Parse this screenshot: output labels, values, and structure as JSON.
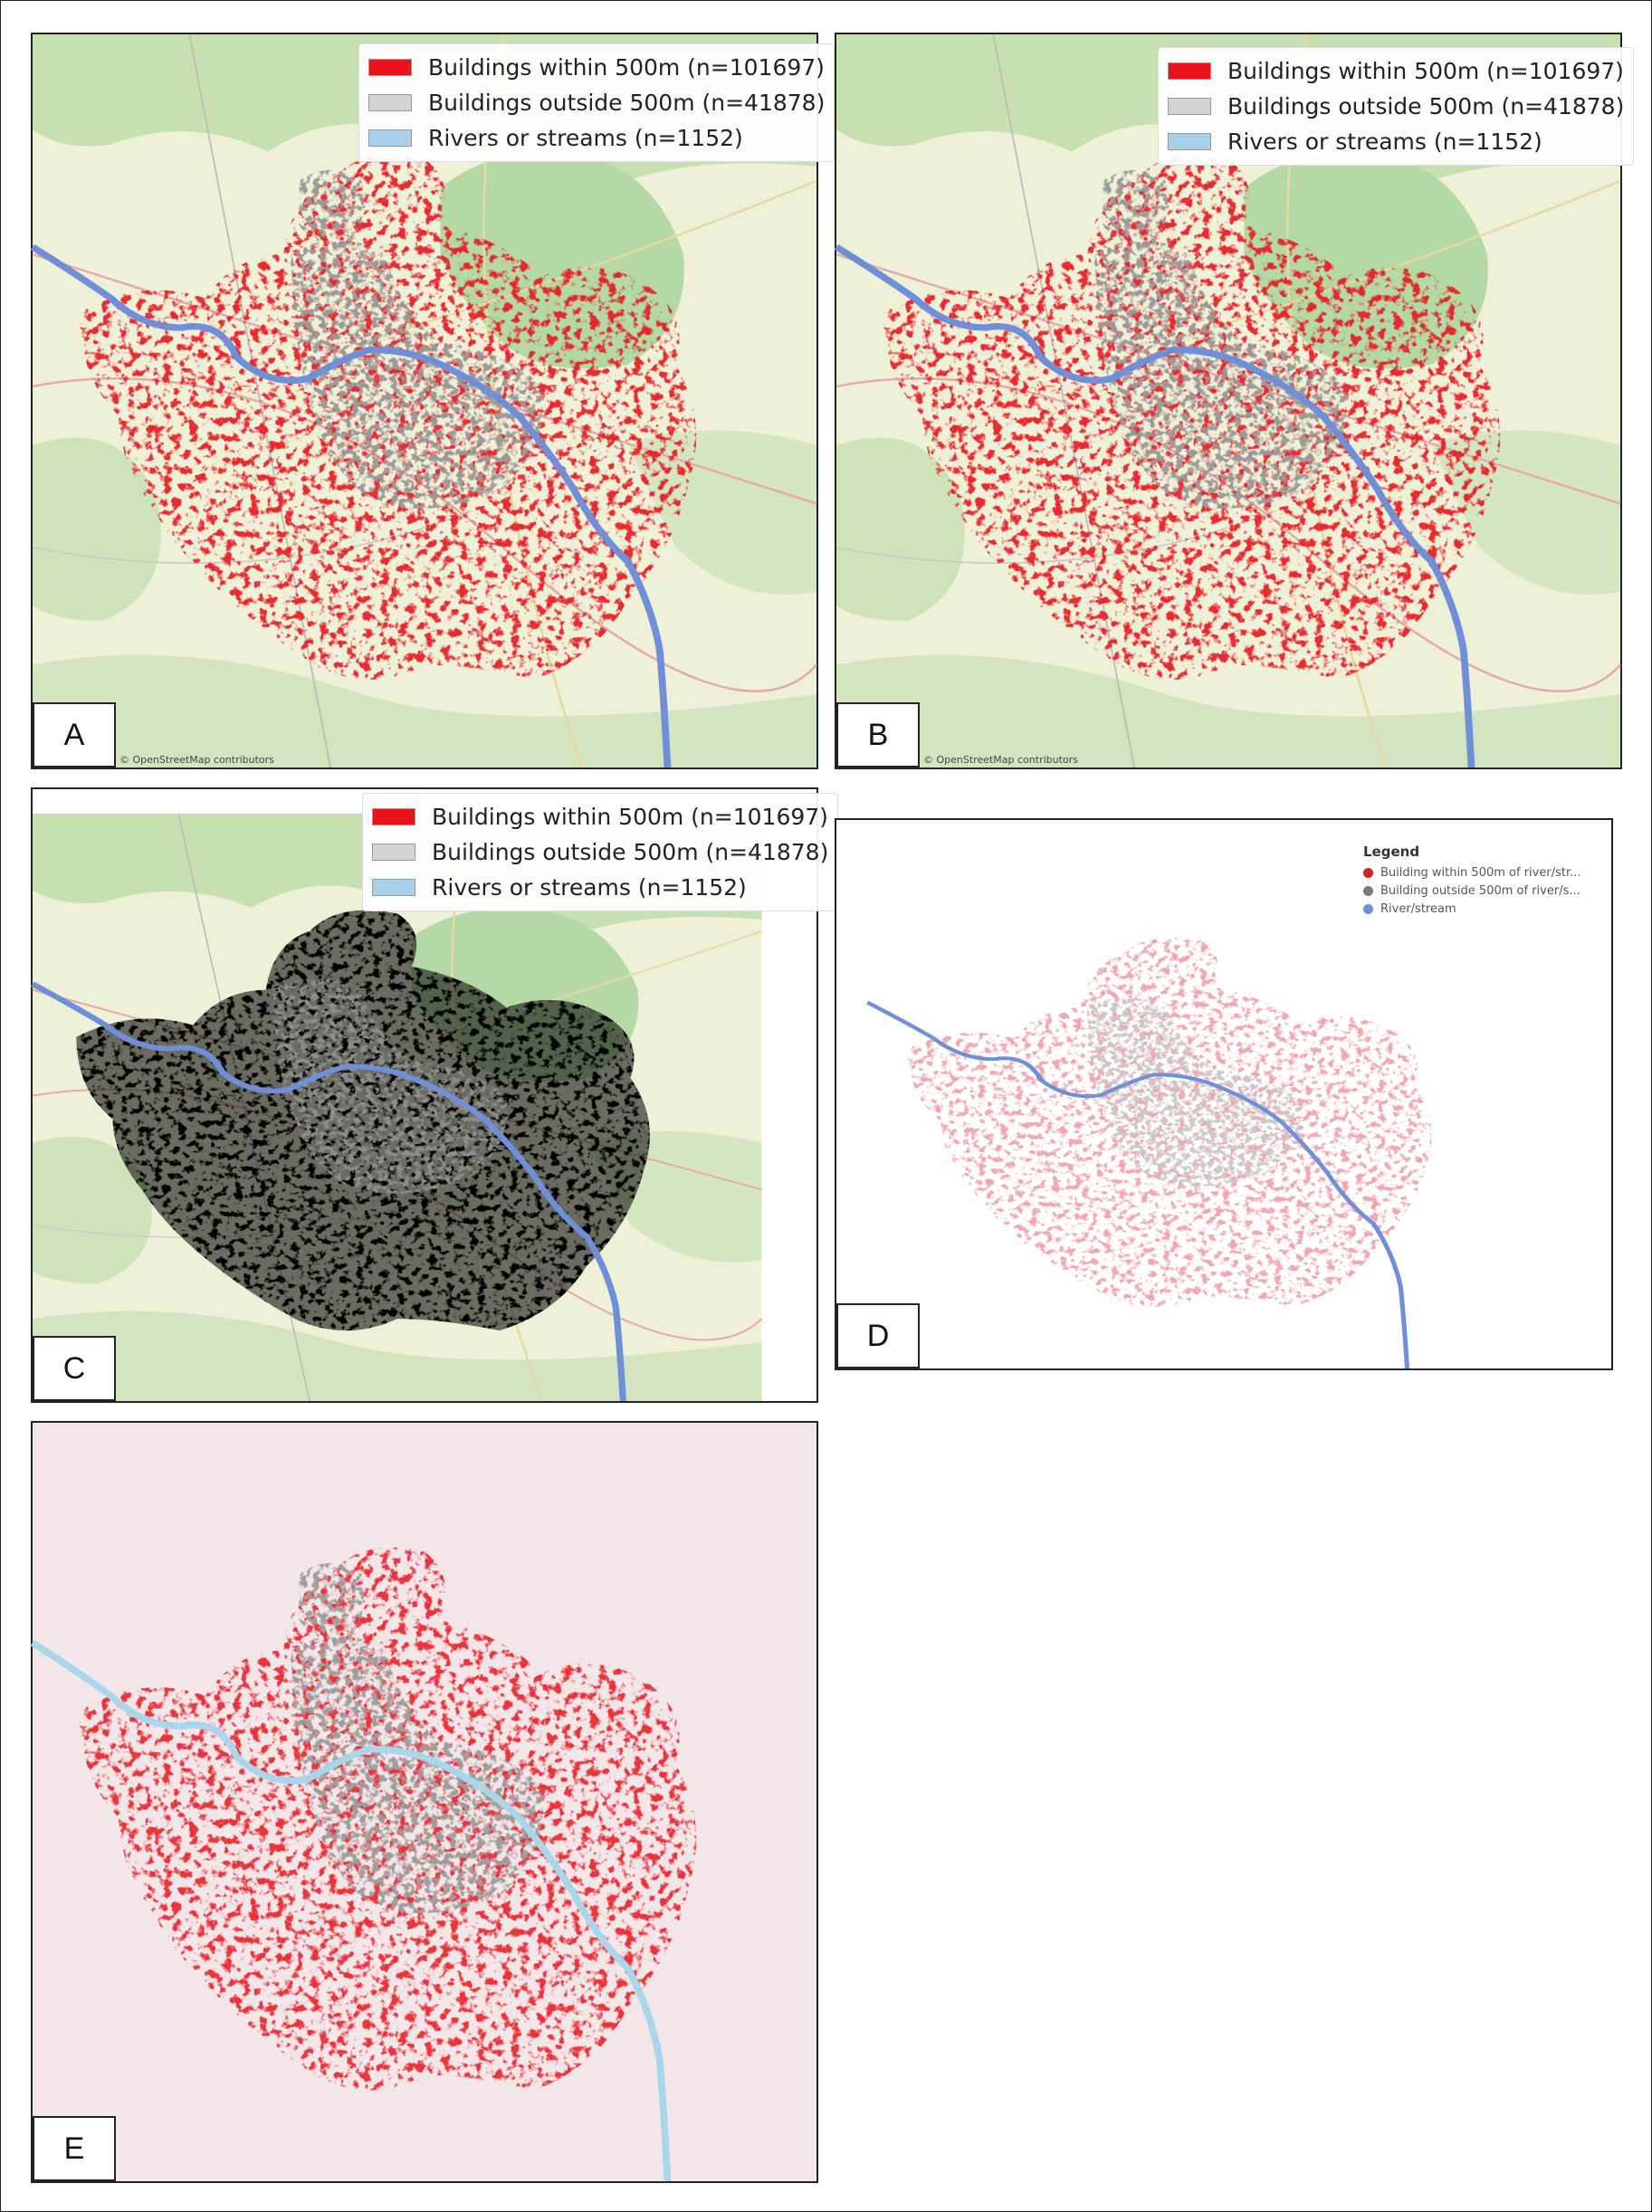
{
  "figure": {
    "colors": {
      "within": "#e8131b",
      "outside": "#b5b5b5",
      "river_a": "#6f8fd8",
      "river_e": "#a9d6ea",
      "basemap_land": "#eef0d6",
      "basemap_forest": "#a9d49a",
      "panel_e_background": "#f3e6e8"
    },
    "panels": [
      {
        "label": "A",
        "style": "osm-basemap",
        "legend": [
          {
            "text": "Buildings within 500m (n=101697)",
            "swatch": "#e8131b"
          },
          {
            "text": "Buildings outside 500m (n=41878)",
            "swatch": "#d3d3d3"
          },
          {
            "text": "Rivers or streams (n=1152)",
            "swatch": "#a9d0e8"
          }
        ],
        "attribution": "© OpenStreetMap contributors"
      },
      {
        "label": "B",
        "style": "osm-basemap",
        "legend": [
          {
            "text": "Buildings within 500m (n=101697)",
            "swatch": "#e8131b"
          },
          {
            "text": "Buildings outside 500m (n=41878)",
            "swatch": "#d3d3d3"
          },
          {
            "text": "Rivers or streams (n=1152)",
            "swatch": "#a9d0e8"
          }
        ],
        "attribution": "© OpenStreetMap contributors"
      },
      {
        "label": "C",
        "style": "osm-basemap-black-buildings",
        "legend": [
          {
            "text": "Buildings within 500m (n=101697)",
            "swatch": "#e8131b"
          },
          {
            "text": "Buildings outside 500m (n=41878)",
            "swatch": "#d3d3d3"
          },
          {
            "text": "Rivers or streams (n=1152)",
            "swatch": "#a9d0e8"
          }
        ]
      },
      {
        "label": "D",
        "style": "white-background",
        "legend_title": "Legend",
        "legend": [
          {
            "text": "Building within 500m of river/str...",
            "swatch": "#d4222b"
          },
          {
            "text": "Building outside 500m of river/s...",
            "swatch": "#7a7a7a"
          },
          {
            "text": "River/stream",
            "swatch": "#6f8fd8"
          }
        ]
      },
      {
        "label": "E",
        "style": "pink-background"
      }
    ]
  }
}
